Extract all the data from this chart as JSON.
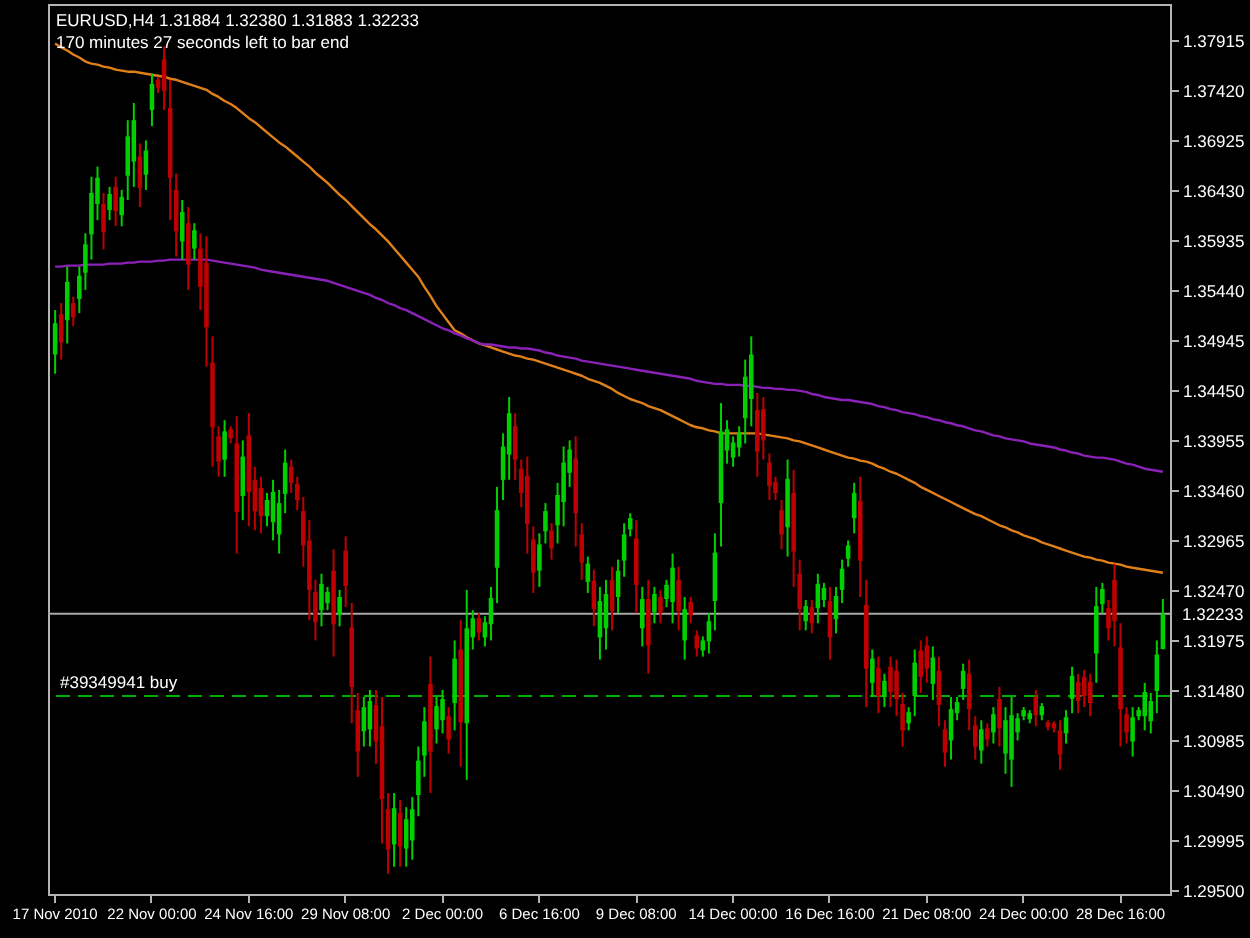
{
  "chart_data": {
    "type": "candlestick",
    "title": "EURUSD,H4 1.31884 1.32380 1.31883 1.32233",
    "subtitle": "170 minutes 27 seconds left to bar end",
    "categories": [
      "17 Nov 2010",
      null,
      null,
      null,
      null,
      null,
      null,
      null,
      null,
      null,
      null,
      null,
      null,
      null,
      null,
      null,
      "22 Nov 00:00",
      null,
      null,
      null,
      null,
      null,
      null,
      null,
      null,
      null,
      null,
      null,
      null,
      null,
      null,
      null,
      "24 Nov 16:00",
      null,
      null,
      null,
      null,
      null,
      null,
      null,
      null,
      null,
      null,
      null,
      null,
      null,
      null,
      null,
      "29 Nov 08:00",
      null,
      null,
      null,
      null,
      null,
      null,
      null,
      null,
      null,
      null,
      null,
      null,
      null,
      null,
      null,
      "2 Dec 00:00",
      null,
      null,
      null,
      null,
      null,
      null,
      null,
      null,
      null,
      null,
      null,
      null,
      null,
      null,
      null,
      "6 Dec 16:00",
      null,
      null,
      null,
      null,
      null,
      null,
      null,
      null,
      null,
      null,
      null,
      null,
      null,
      null,
      null,
      "9 Dec 08:00",
      null,
      null,
      null,
      null,
      null,
      null,
      null,
      null,
      null,
      null,
      null,
      null,
      null,
      null,
      null,
      "14 Dec 00:00",
      null,
      null,
      null,
      null,
      null,
      null,
      null,
      null,
      null,
      null,
      null,
      null,
      null,
      null,
      null,
      "16 Dec 16:00",
      null,
      null,
      null,
      null,
      null,
      null,
      null,
      null,
      null,
      null,
      null,
      null,
      null,
      null,
      null,
      "21 Dec 08:00",
      null,
      null,
      null,
      null,
      null,
      null,
      null,
      null,
      null,
      null,
      null,
      null,
      null,
      null,
      null,
      "24 Dec 00:00",
      null,
      null,
      null,
      null,
      null,
      null,
      null,
      null,
      null,
      null,
      null,
      null,
      null,
      null,
      null,
      "28 Dec 16:00",
      null,
      null,
      null,
      null,
      null,
      null,
      null
    ],
    "ohlc": [
      [
        1.348,
        1.3524,
        1.3461,
        1.3511
      ],
      [
        1.352,
        1.3531,
        1.3475,
        1.3492
      ],
      [
        1.3514,
        1.3567,
        1.3491,
        1.3552
      ],
      [
        1.3531,
        1.3537,
        1.3508,
        1.3517
      ],
      [
        1.3535,
        1.3567,
        1.3521,
        1.3558
      ],
      [
        1.3561,
        1.36,
        1.3544,
        1.3589
      ],
      [
        1.3599,
        1.3656,
        1.3574,
        1.364
      ],
      [
        1.3629,
        1.3666,
        1.3613,
        1.3655
      ],
      [
        1.3629,
        1.364,
        1.3584,
        1.3601
      ],
      [
        1.3623,
        1.3646,
        1.3613,
        1.3639
      ],
      [
        1.3646,
        1.3656,
        1.3607,
        1.3622
      ],
      [
        1.3618,
        1.3643,
        1.3607,
        1.3636
      ],
      [
        1.3657,
        1.3712,
        1.3633,
        1.3696
      ],
      [
        1.3671,
        1.3729,
        1.3646,
        1.3712
      ],
      [
        1.3676,
        1.3689,
        1.3626,
        1.3645
      ],
      [
        1.3658,
        1.3692,
        1.3643,
        1.3682
      ],
      [
        1.3722,
        1.3758,
        1.3706,
        1.3748
      ],
      [
        1.3752,
        1.3755,
        1.3739,
        1.3744
      ],
      [
        1.3772,
        1.3785,
        1.3722,
        1.3741
      ],
      [
        1.3724,
        1.3752,
        1.3613,
        1.3655
      ],
      [
        1.3643,
        1.3659,
        1.3577,
        1.3602
      ],
      [
        1.3592,
        1.3633,
        1.3574,
        1.3621
      ],
      [
        1.361,
        1.3626,
        1.3544,
        1.3569
      ],
      [
        1.3585,
        1.361,
        1.3574,
        1.3603
      ],
      [
        1.3585,
        1.36,
        1.3524,
        1.3547
      ],
      [
        1.3571,
        1.3597,
        1.3468,
        1.3507
      ],
      [
        1.3472,
        1.3498,
        1.3369,
        1.3408
      ],
      [
        1.3399,
        1.3409,
        1.3359,
        1.3374
      ],
      [
        1.3376,
        1.3415,
        1.3359,
        1.3404
      ],
      [
        1.3406,
        1.3409,
        1.3392,
        1.3397
      ],
      [
        1.3392,
        1.3419,
        1.3283,
        1.3324
      ],
      [
        1.334,
        1.3395,
        1.3316,
        1.3379
      ],
      [
        1.34,
        1.3422,
        1.331,
        1.3344
      ],
      [
        1.3356,
        1.3369,
        1.3306,
        1.3325
      ],
      [
        1.3348,
        1.3359,
        1.3303,
        1.332
      ],
      [
        1.332,
        1.3343,
        1.331,
        1.3336
      ],
      [
        1.3314,
        1.3356,
        1.3296,
        1.3344
      ],
      [
        1.3302,
        1.3346,
        1.3283,
        1.3333
      ],
      [
        1.3342,
        1.3386,
        1.3323,
        1.3373
      ],
      [
        1.3369,
        1.3376,
        1.3343,
        1.3353
      ],
      [
        1.3352,
        1.3359,
        1.3326,
        1.3336
      ],
      [
        1.3325,
        1.3339,
        1.327,
        1.3291
      ],
      [
        1.3296,
        1.3316,
        1.3217,
        1.3247
      ],
      [
        1.3245,
        1.3257,
        1.3197,
        1.3215
      ],
      [
        1.3227,
        1.3263,
        1.3211,
        1.3253
      ],
      [
        1.3234,
        1.325,
        1.3227,
        1.3245
      ],
      [
        1.3266,
        1.3287,
        1.3181,
        1.3213
      ],
      [
        1.3222,
        1.3247,
        1.3211,
        1.324
      ],
      [
        1.3286,
        1.33,
        1.323,
        1.3251
      ],
      [
        1.321,
        1.3234,
        1.3115,
        1.3151
      ],
      [
        1.3128,
        1.3145,
        1.3062,
        1.3087
      ],
      [
        1.3107,
        1.3141,
        1.3092,
        1.3131
      ],
      [
        1.3109,
        1.3148,
        1.3092,
        1.3137
      ],
      [
        1.3133,
        1.3148,
        1.3075,
        1.3097
      ],
      [
        1.3112,
        1.3141,
        1.2996,
        1.304
      ],
      [
        1.303,
        1.3046,
        1.2966,
        1.299
      ],
      [
        1.2995,
        1.3046,
        1.2973,
        1.3031
      ],
      [
        1.3026,
        1.3039,
        1.2973,
        1.2993
      ],
      [
        1.2991,
        1.3032,
        1.2973,
        1.302
      ],
      [
        1.2999,
        1.3042,
        1.298,
        1.303
      ],
      [
        1.3044,
        1.3092,
        1.3023,
        1.3078
      ],
      [
        1.3083,
        1.3131,
        1.3062,
        1.3117
      ],
      [
        1.3154,
        1.3181,
        1.3046,
        1.3087
      ],
      [
        1.3109,
        1.3141,
        1.3095,
        1.3132
      ],
      [
        1.3118,
        1.3148,
        1.3105,
        1.3139
      ],
      [
        1.3122,
        1.3131,
        1.3085,
        1.3099
      ],
      [
        1.3135,
        1.3197,
        1.3108,
        1.3179
      ],
      [
        1.3188,
        1.3217,
        1.3072,
        1.3116
      ],
      [
        1.3115,
        1.3247,
        1.3059,
        1.3209
      ],
      [
        1.32,
        1.3227,
        1.3188,
        1.3219
      ],
      [
        1.3219,
        1.3224,
        1.3197,
        1.3205
      ],
      [
        1.32,
        1.3221,
        1.3191,
        1.3215
      ],
      [
        1.3213,
        1.325,
        1.3197,
        1.3239
      ],
      [
        1.3269,
        1.3349,
        1.3234,
        1.3326
      ],
      [
        1.3356,
        1.3402,
        1.3336,
        1.3389
      ],
      [
        1.3381,
        1.3438,
        1.3356,
        1.3422
      ],
      [
        1.3409,
        1.3422,
        1.3356,
        1.3376
      ],
      [
        1.3367,
        1.3376,
        1.3329,
        1.3343
      ],
      [
        1.336,
        1.3379,
        1.3283,
        1.3312
      ],
      [
        1.3297,
        1.331,
        1.3244,
        1.3264
      ],
      [
        1.3266,
        1.3303,
        1.325,
        1.3292
      ],
      [
        1.3305,
        1.3333,
        1.3293,
        1.3325
      ],
      [
        1.3306,
        1.3313,
        1.3277,
        1.3288
      ],
      [
        1.3311,
        1.3353,
        1.3293,
        1.3341
      ],
      [
        1.3334,
        1.3389,
        1.331,
        1.3373
      ],
      [
        1.3363,
        1.3395,
        1.3349,
        1.3386
      ],
      [
        1.3377,
        1.3399,
        1.329,
        1.3323
      ],
      [
        1.3302,
        1.3313,
        1.3257,
        1.3274
      ],
      [
        1.3255,
        1.328,
        1.3244,
        1.3273
      ],
      [
        1.3256,
        1.3267,
        1.3211,
        1.3228
      ],
      [
        1.32,
        1.325,
        1.3178,
        1.3236
      ],
      [
        1.3209,
        1.3257,
        1.3188,
        1.3243
      ],
      [
        1.3257,
        1.327,
        1.3207,
        1.3226
      ],
      [
        1.324,
        1.3277,
        1.3224,
        1.3266
      ],
      [
        1.3276,
        1.3313,
        1.326,
        1.3302
      ],
      [
        1.3307,
        1.3323,
        1.33,
        1.3318
      ],
      [
        1.3298,
        1.3316,
        1.3224,
        1.3252
      ],
      [
        1.3209,
        1.325,
        1.3191,
        1.3238
      ],
      [
        1.3238,
        1.3257,
        1.3164,
        1.3192
      ],
      [
        1.3225,
        1.325,
        1.3214,
        1.3243
      ],
      [
        1.324,
        1.3247,
        1.3214,
        1.3224
      ],
      [
        1.3238,
        1.3257,
        1.323,
        1.3252
      ],
      [
        1.3235,
        1.3283,
        1.3214,
        1.3269
      ],
      [
        1.3257,
        1.327,
        1.3207,
        1.3226
      ],
      [
        1.3197,
        1.324,
        1.3178,
        1.3228
      ],
      [
        1.3235,
        1.324,
        1.3214,
        1.3222
      ],
      [
        1.3202,
        1.3207,
        1.3181,
        1.3189
      ],
      [
        1.3187,
        1.3201,
        1.3181,
        1.3197
      ],
      [
        1.3196,
        1.3224,
        1.3184,
        1.3216
      ],
      [
        1.3236,
        1.3303,
        1.3207,
        1.3284
      ],
      [
        1.3333,
        1.3432,
        1.329,
        1.3404
      ],
      [
        1.3385,
        1.3415,
        1.3372,
        1.3406
      ],
      [
        1.3378,
        1.3399,
        1.3369,
        1.3393
      ],
      [
        1.3388,
        1.3409,
        1.3379,
        1.3403
      ],
      [
        1.3417,
        1.3475,
        1.3392,
        1.3458
      ],
      [
        1.3436,
        1.3498,
        1.3409,
        1.348
      ],
      [
        1.3425,
        1.3442,
        1.3359,
        1.3384
      ],
      [
        1.3426,
        1.3438,
        1.3376,
        1.3395
      ],
      [
        1.3373,
        1.3382,
        1.3336,
        1.335
      ],
      [
        1.3354,
        1.3359,
        1.3336,
        1.3343
      ],
      [
        1.3326,
        1.3336,
        1.3287,
        1.3302
      ],
      [
        1.3309,
        1.3376,
        1.328,
        1.3357
      ],
      [
        1.3343,
        1.3366,
        1.325,
        1.3285
      ],
      [
        1.3263,
        1.3277,
        1.3207,
        1.3228
      ],
      [
        1.3216,
        1.3237,
        1.3207,
        1.3231
      ],
      [
        1.323,
        1.3237,
        1.3204,
        1.3214
      ],
      [
        1.3229,
        1.3263,
        1.3214,
        1.3253
      ],
      [
        1.3237,
        1.3254,
        1.323,
        1.3249
      ],
      [
        1.3236,
        1.325,
        1.3178,
        1.32
      ],
      [
        1.3218,
        1.325,
        1.3204,
        1.3241
      ],
      [
        1.3247,
        1.3277,
        1.3234,
        1.3268
      ],
      [
        1.3278,
        1.3296,
        1.327,
        1.3291
      ],
      [
        1.3318,
        1.3353,
        1.3303,
        1.3343
      ],
      [
        1.3335,
        1.3359,
        1.324,
        1.3276
      ],
      [
        1.3232,
        1.3257,
        1.3131,
        1.3169
      ],
      [
        1.3155,
        1.3188,
        1.3141,
        1.3179
      ],
      [
        1.317,
        1.3181,
        1.3125,
        1.3142
      ],
      [
        1.3141,
        1.3164,
        1.3131,
        1.3157
      ],
      [
        1.3171,
        1.3181,
        1.3131,
        1.3146
      ],
      [
        1.3167,
        1.3178,
        1.3122,
        1.3139
      ],
      [
        1.3134,
        1.3145,
        1.3092,
        1.3108
      ],
      [
        1.3115,
        1.3131,
        1.3108,
        1.3126
      ],
      [
        1.3142,
        1.3188,
        1.3122,
        1.3175
      ],
      [
        1.3187,
        1.3197,
        1.3145,
        1.3161
      ],
      [
        1.3192,
        1.3201,
        1.3155,
        1.3169
      ],
      [
        1.3154,
        1.3191,
        1.3138,
        1.318
      ],
      [
        1.3167,
        1.3181,
        1.3112,
        1.3133
      ],
      [
        1.3109,
        1.3118,
        1.3072,
        1.3086
      ],
      [
        1.3098,
        1.3141,
        1.3079,
        1.3129
      ],
      [
        1.3125,
        1.3141,
        1.3118,
        1.3136
      ],
      [
        1.3149,
        1.3174,
        1.3138,
        1.3167
      ],
      [
        1.3164,
        1.3178,
        1.3108,
        1.3129
      ],
      [
        1.3113,
        1.3122,
        1.3079,
        1.3092
      ],
      [
        1.3088,
        1.3118,
        1.3075,
        1.3109
      ],
      [
        1.311,
        1.3115,
        1.3092,
        1.3099
      ],
      [
        1.3106,
        1.3131,
        1.3095,
        1.3124
      ],
      [
        1.3139,
        1.3151,
        1.3092,
        1.311
      ],
      [
        1.3085,
        1.3131,
        1.3065,
        1.3118
      ],
      [
        1.3079,
        1.3141,
        1.3052,
        1.3123
      ],
      [
        1.3106,
        1.3125,
        1.3098,
        1.312
      ],
      [
        1.3122,
        1.3131,
        1.3118,
        1.3128
      ],
      [
        1.3119,
        1.3128,
        1.3115,
        1.3125
      ],
      [
        1.3141,
        1.3148,
        1.3112,
        1.3123
      ],
      [
        1.3123,
        1.3135,
        1.3118,
        1.3132
      ],
      [
        1.3116,
        1.3118,
        1.3108,
        1.3111
      ],
      [
        1.3115,
        1.3117,
        1.3106,
        1.311
      ],
      [
        1.3108,
        1.3118,
        1.3069,
        1.3084
      ],
      [
        1.3105,
        1.3128,
        1.3095,
        1.3121
      ],
      [
        1.3139,
        1.3171,
        1.3125,
        1.3162
      ],
      [
        1.3156,
        1.3164,
        1.3125,
        1.3137
      ],
      [
        1.3161,
        1.3168,
        1.3131,
        1.3142
      ],
      [
        1.3156,
        1.3164,
        1.3122,
        1.3135
      ],
      [
        1.3184,
        1.325,
        1.3155,
        1.3231
      ],
      [
        1.3233,
        1.3254,
        1.3224,
        1.3248
      ],
      [
        1.3229,
        1.3237,
        1.3197,
        1.3209
      ],
      [
        1.3257,
        1.3273,
        1.3191,
        1.3216
      ],
      [
        1.319,
        1.3214,
        1.3092,
        1.3129
      ],
      [
        1.3124,
        1.3131,
        1.3095,
        1.3106
      ],
      [
        1.3097,
        1.3131,
        1.3082,
        1.3121
      ],
      [
        1.3122,
        1.3131,
        1.3118,
        1.3128
      ],
      [
        1.3122,
        1.3155,
        1.3108,
        1.3146
      ],
      [
        1.3117,
        1.3145,
        1.3105,
        1.3137
      ],
      [
        1.3147,
        1.3197,
        1.3125,
        1.3183
      ],
      [
        1.31884,
        1.3238,
        1.31883,
        1.32233
      ]
    ],
    "colors": [
      "#00d000",
      "#c00000",
      "#00d000",
      "#c00000",
      "#00d000",
      "#00d000",
      "#00d000",
      "#00d000",
      "#c00000",
      "#00d000",
      "#c00000",
      "#00d000",
      "#00d000",
      "#00d000",
      "#c00000",
      "#00d000",
      "#00d000",
      "#c00000",
      "#c00000",
      "#c00000",
      "#c00000",
      "#00d000",
      "#c00000",
      "#00d000",
      "#c00000",
      "#c00000",
      "#c00000",
      "#c00000",
      "#00d000",
      "#c00000",
      "#c00000",
      "#00d000",
      "#c00000",
      "#c00000",
      "#c00000",
      "#00d000",
      "#00d000",
      "#00d000",
      "#00d000",
      "#c00000",
      "#c00000",
      "#c00000",
      "#c00000",
      "#c00000",
      "#00d000",
      "#00d000",
      "#c00000",
      "#00d000",
      "#c00000",
      "#c00000",
      "#c00000",
      "#00d000",
      "#00d000",
      "#c00000",
      "#c00000",
      "#c00000",
      "#00d000",
      "#c00000",
      "#00d000",
      "#00d000",
      "#00d000",
      "#00d000",
      "#c00000",
      "#00d000",
      "#00d000",
      "#c00000",
      "#00d000",
      "#c00000",
      "#00d000",
      "#00d000",
      "#c00000",
      "#00d000",
      "#00d000",
      "#00d000",
      "#00d000",
      "#00d000",
      "#c00000",
      "#c00000",
      "#c00000",
      "#c00000",
      "#00d000",
      "#00d000",
      "#c00000",
      "#00d000",
      "#00d000",
      "#00d000",
      "#c00000",
      "#c00000",
      "#00d000",
      "#c00000",
      "#00d000",
      "#00d000",
      "#c00000",
      "#00d000",
      "#00d000",
      "#00d000",
      "#c00000",
      "#00d000",
      "#c00000",
      "#00d000",
      "#c00000",
      "#00d000",
      "#00d000",
      "#c00000",
      "#00d000",
      "#c00000",
      "#c00000",
      "#00d000",
      "#00d000",
      "#00d000",
      "#00d000",
      "#00d000",
      "#00d000",
      "#00d000",
      "#00d000",
      "#00d000",
      "#c00000",
      "#c00000",
      "#c00000",
      "#c00000",
      "#c00000",
      "#00d000",
      "#c00000",
      "#c00000",
      "#00d000",
      "#c00000",
      "#00d000",
      "#00d000",
      "#c00000",
      "#00d000",
      "#00d000",
      "#00d000",
      "#00d000",
      "#c00000",
      "#c00000",
      "#00d000",
      "#c00000",
      "#00d000",
      "#c00000",
      "#c00000",
      "#c00000",
      "#00d000",
      "#00d000",
      "#c00000",
      "#c00000",
      "#00d000",
      "#c00000",
      "#c00000",
      "#00d000",
      "#00d000",
      "#00d000",
      "#c00000",
      "#c00000",
      "#00d000",
      "#c00000",
      "#00d000",
      "#c00000",
      "#00d000",
      "#00d000",
      "#00d000",
      "#00d000",
      "#00d000",
      "#c00000",
      "#00d000",
      "#c00000",
      "#c00000",
      "#c00000",
      "#00d000",
      "#00d000",
      "#c00000",
      "#c00000",
      "#c00000",
      "#00d000",
      "#00d000",
      "#c00000",
      "#c00000",
      "#c00000",
      "#c00000",
      "#00d000",
      "#00d000",
      "#00d000",
      "#00d000",
      "#00d000",
      "#00d000"
    ],
    "series": [
      {
        "type": "line",
        "color": "#e0801a",
        "values": [
          1.3788,
          1.3784,
          1.3781,
          1.3777,
          1.3774,
          1.377,
          1.3768,
          1.3767,
          1.3765,
          1.3764,
          1.3762,
          1.3761,
          1.376,
          1.376,
          1.3759,
          1.3758,
          1.3757,
          1.3756,
          1.3755,
          1.3753,
          1.3752,
          1.375,
          1.3748,
          1.3746,
          1.3744,
          1.3742,
          1.3738,
          1.3735,
          1.3731,
          1.3728,
          1.3724,
          1.3719,
          1.3714,
          1.371,
          1.3705,
          1.37,
          1.3695,
          1.369,
          1.3686,
          1.3681,
          1.3676,
          1.3671,
          1.3666,
          1.366,
          1.3655,
          1.365,
          1.3644,
          1.3638,
          1.3633,
          1.3627,
          1.3621,
          1.3615,
          1.3609,
          1.3604,
          1.3598,
          1.3592,
          1.3585,
          1.3578,
          1.3571,
          1.3564,
          1.3557,
          1.3547,
          1.3538,
          1.3528,
          1.352,
          1.3512,
          1.3504,
          1.3501,
          1.3497,
          1.3494,
          1.3491,
          1.3489,
          1.3487,
          1.3485,
          1.3483,
          1.3481,
          1.3479,
          1.3478,
          1.3476,
          1.3475,
          1.3473,
          1.3471,
          1.3469,
          1.3467,
          1.3465,
          1.3463,
          1.3461,
          1.3459,
          1.3456,
          1.3454,
          1.3452,
          1.3449,
          1.3446,
          1.3442,
          1.3439,
          1.3436,
          1.3434,
          1.3432,
          1.3429,
          1.3427,
          1.3425,
          1.3422,
          1.3419,
          1.3416,
          1.3413,
          1.341,
          1.3408,
          1.3407,
          1.3405,
          1.3404,
          1.3402,
          1.3402,
          1.3402,
          1.3402,
          1.3402,
          1.3402,
          1.3402,
          1.3401,
          1.34,
          1.3399,
          1.3398,
          1.3397,
          1.3395,
          1.3394,
          1.3392,
          1.339,
          1.3388,
          1.3386,
          1.3384,
          1.3382,
          1.338,
          1.3378,
          1.3377,
          1.3375,
          1.3374,
          1.3372,
          1.3369,
          1.3367,
          1.3364,
          1.3362,
          1.3359,
          1.3356,
          1.3353,
          1.3349,
          1.3346,
          1.3343,
          1.334,
          1.3337,
          1.3334,
          1.3331,
          1.3328,
          1.3325,
          1.3322,
          1.332,
          1.3317,
          1.3314,
          1.3311,
          1.3309,
          1.3306,
          1.3304,
          1.3301,
          1.3299,
          1.3297,
          1.3294,
          1.3292,
          1.329,
          1.3288,
          1.3286,
          1.3284,
          1.3282,
          1.328,
          1.3279,
          1.3277,
          1.3276,
          1.3274,
          1.3273,
          1.3272,
          1.327,
          1.3269,
          1.3268,
          1.3267,
          1.3266,
          1.3265,
          1.3264
        ]
      },
      {
        "type": "line",
        "color": "#8a22b8",
        "values": [
          1.3567,
          1.3567,
          1.3568,
          1.3568,
          1.3568,
          1.3569,
          1.3569,
          1.3569,
          1.3569,
          1.357,
          1.357,
          1.357,
          1.3571,
          1.3571,
          1.3572,
          1.3572,
          1.3572,
          1.3573,
          1.3573,
          1.3574,
          1.3574,
          1.3574,
          1.3574,
          1.3574,
          1.3574,
          1.3574,
          1.3573,
          1.3572,
          1.3571,
          1.357,
          1.3569,
          1.3568,
          1.3567,
          1.3566,
          1.3564,
          1.3563,
          1.3562,
          1.3561,
          1.356,
          1.3559,
          1.3558,
          1.3557,
          1.3556,
          1.3555,
          1.3554,
          1.3553,
          1.3551,
          1.3549,
          1.3547,
          1.3545,
          1.3543,
          1.3541,
          1.3539,
          1.3536,
          1.3534,
          1.3531,
          1.3529,
          1.3526,
          1.3524,
          1.3521,
          1.3518,
          1.3515,
          1.3512,
          1.3509,
          1.3506,
          1.3504,
          1.3501,
          1.3499,
          1.3496,
          1.3494,
          1.3491,
          1.349,
          1.349,
          1.3489,
          1.3488,
          1.3487,
          1.3487,
          1.3486,
          1.3486,
          1.3485,
          1.3484,
          1.3482,
          1.3481,
          1.3479,
          1.3478,
          1.3477,
          1.3476,
          1.3474,
          1.3473,
          1.3472,
          1.3471,
          1.347,
          1.3469,
          1.3468,
          1.3467,
          1.3466,
          1.3465,
          1.3464,
          1.3463,
          1.3462,
          1.3461,
          1.346,
          1.3459,
          1.3458,
          1.3457,
          1.3456,
          1.3454,
          1.3453,
          1.3452,
          1.3451,
          1.3451,
          1.345,
          1.345,
          1.345,
          1.3449,
          1.3449,
          1.3448,
          1.3447,
          1.3447,
          1.3446,
          1.3446,
          1.3445,
          1.3445,
          1.3444,
          1.3443,
          1.3441,
          1.344,
          1.3438,
          1.3437,
          1.3436,
          1.3435,
          1.3435,
          1.3434,
          1.3433,
          1.3432,
          1.3431,
          1.3429,
          1.3428,
          1.3426,
          1.3425,
          1.3423,
          1.3422,
          1.3421,
          1.3419,
          1.3418,
          1.3416,
          1.3415,
          1.3413,
          1.3412,
          1.341,
          1.3409,
          1.3407,
          1.3405,
          1.3404,
          1.3402,
          1.34,
          1.3399,
          1.3397,
          1.3396,
          1.3395,
          1.3394,
          1.3392,
          1.3391,
          1.339,
          1.3389,
          1.3388,
          1.3386,
          1.3385,
          1.3383,
          1.3382,
          1.338,
          1.3379,
          1.3378,
          1.3378,
          1.3377,
          1.3376,
          1.3374,
          1.3372,
          1.3371,
          1.3369,
          1.3367,
          1.3366,
          1.3365,
          1.3364
        ]
      }
    ],
    "ref_lines": [
      {
        "axis": "y",
        "value": 1.32233,
        "label": "1.32233",
        "color": "#a8a8a8"
      },
      {
        "axis": "y",
        "value": 1.3142,
        "label": "#39349941 buy",
        "color": "#00b000",
        "line_style": "dashed"
      }
    ],
    "ylim": [
      1.2946,
      1.3827
    ],
    "yticks": [
      1.37915,
      {
        "value": 1.3742,
        "label": "1.37420"
      },
      1.36925,
      {
        "value": 1.3643,
        "label": "1.36430"
      },
      1.35935,
      {
        "value": 1.3544,
        "label": "1.35440"
      },
      1.34945,
      {
        "value": 1.3445,
        "label": "1.34450"
      },
      1.33955,
      {
        "value": 1.3346,
        "label": "1.33460"
      },
      1.32965,
      {
        "value": 1.3247,
        "label": "1.32470"
      },
      1.31975,
      {
        "value": 1.3148,
        "label": "1.31480"
      },
      1.30985,
      {
        "value": 1.3049,
        "label": "1.30490"
      },
      1.29995,
      {
        "value": 1.295,
        "label": "1.29500"
      }
    ],
    "grid": false
  }
}
